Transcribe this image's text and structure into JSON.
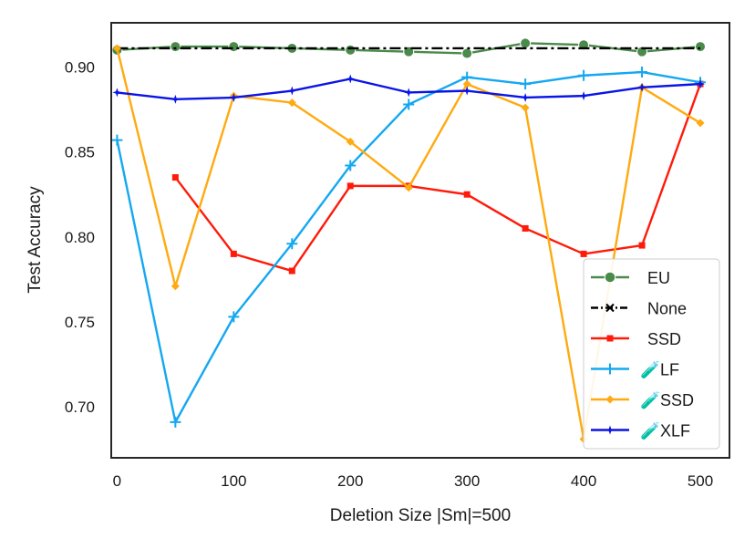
{
  "chart_data": {
    "type": "line",
    "title": "",
    "xlabel": "Deletion Size |Sm|=500",
    "ylabel": "Test Accuracy",
    "xlim": [
      -5,
      525
    ],
    "ylim": [
      0.67,
      0.926
    ],
    "xticks": [
      0,
      100,
      200,
      300,
      400,
      500
    ],
    "yticks": [
      0.7,
      0.75,
      0.8,
      0.85,
      0.9
    ],
    "ytick_labels": [
      "0.70",
      "0.75",
      "0.80",
      "0.85",
      "0.90"
    ],
    "grid": false,
    "legend_position": "bottom-right",
    "series": [
      {
        "name": "EU",
        "emoji": "",
        "color": "#4a8a4a",
        "marker": "circle",
        "x": [
          0,
          50,
          100,
          150,
          200,
          250,
          300,
          350,
          400,
          450,
          500
        ],
        "y": [
          0.91,
          0.912,
          0.912,
          0.911,
          0.91,
          0.909,
          0.908,
          0.914,
          0.913,
          0.909,
          0.912
        ]
      },
      {
        "name": "None",
        "emoji": "",
        "color": "#000000",
        "marker": "x",
        "dash": "dashdot",
        "x": [
          0,
          500
        ],
        "y": [
          0.911,
          0.911
        ]
      },
      {
        "name": "SSD",
        "emoji": "",
        "color": "#ff1a0a",
        "marker": "square",
        "x": [
          50,
          100,
          150,
          200,
          250,
          300,
          350,
          400,
          450,
          500
        ],
        "y": [
          0.835,
          0.79,
          0.78,
          0.83,
          0.83,
          0.825,
          0.805,
          0.79,
          0.795,
          0.89
        ]
      },
      {
        "name": "LF",
        "emoji": "🧪",
        "color": "#14a8f0",
        "marker": "plus",
        "x": [
          0,
          50,
          100,
          150,
          200,
          250,
          300,
          350,
          400,
          450,
          500
        ],
        "y": [
          0.857,
          0.691,
          0.753,
          0.796,
          0.842,
          0.878,
          0.894,
          0.89,
          0.895,
          0.897,
          0.891
        ]
      },
      {
        "name": "SSD",
        "emoji": "🧪",
        "color": "#ffaa10",
        "marker": "diamond",
        "x": [
          0,
          50,
          100,
          150,
          200,
          250,
          300,
          350,
          400,
          450,
          500
        ],
        "y": [
          0.911,
          0.771,
          0.883,
          0.879,
          0.856,
          0.829,
          0.89,
          0.876,
          0.681,
          0.888,
          0.867
        ]
      },
      {
        "name": "XLF",
        "emoji": "🧪",
        "color": "#0a14e6",
        "marker": "star",
        "x": [
          0,
          50,
          100,
          150,
          200,
          250,
          300,
          350,
          400,
          450,
          500
        ],
        "y": [
          0.885,
          0.881,
          0.882,
          0.886,
          0.893,
          0.885,
          0.886,
          0.882,
          0.883,
          0.888,
          0.89
        ]
      }
    ]
  }
}
